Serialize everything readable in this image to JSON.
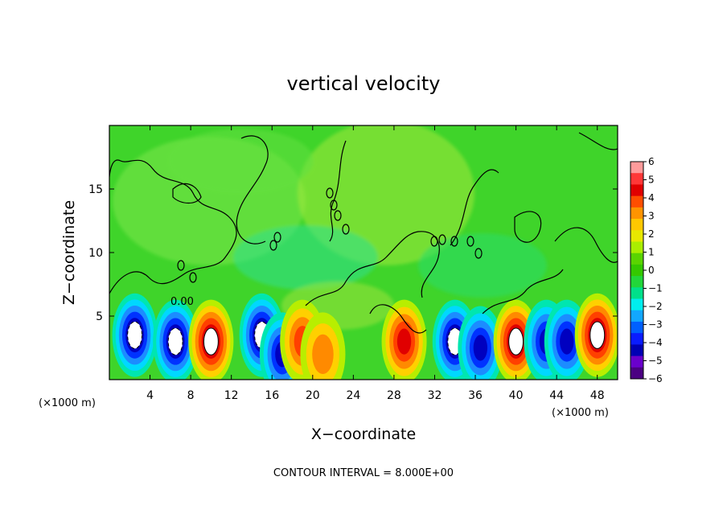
{
  "chart_data": {
    "type": "heatmap",
    "title": "vertical velocity",
    "xlabel": "X−coordinate",
    "ylabel": "Z−coordinate",
    "x_unit_label": "(×1000 m)",
    "x_ticks": [
      4,
      8,
      12,
      16,
      20,
      24,
      28,
      32,
      36,
      40,
      44,
      48
    ],
    "y_ticks": [
      5,
      10,
      15
    ],
    "xlim": [
      0,
      50
    ],
    "ylim": [
      0,
      20
    ],
    "grid": false,
    "contour_interval_label": "CONTOUR INTERVAL = 8.000E+00",
    "contour_label": "0.00",
    "colorbar": {
      "ticks": [
        "6",
        "5",
        "4",
        "3",
        "2",
        "1",
        "0",
        "−1",
        "−2",
        "−3",
        "−4",
        "−5",
        "−6"
      ],
      "colors": [
        "#ff9b9b",
        "#ff3838",
        "#e00000",
        "#ff4e00",
        "#ff9400",
        "#ffc800",
        "#e8e800",
        "#aaee00",
        "#5ad400",
        "#34c800",
        "#22d63a",
        "#00e08a",
        "#00eeee",
        "#12a7ff",
        "#0060ff",
        "#0a1cff",
        "#0000b4",
        "#6a00cc",
        "#4b0082"
      ]
    },
    "cells": [
      {
        "x": 2.5,
        "z": 3.5,
        "w": -6
      },
      {
        "x": 6.5,
        "z": 3.0,
        "w": -6
      },
      {
        "x": 10.0,
        "z": 3.0,
        "w": 6
      },
      {
        "x": 15.0,
        "z": 3.5,
        "w": -6
      },
      {
        "x": 17.0,
        "z": 2.0,
        "w": -5
      },
      {
        "x": 19.0,
        "z": 3.0,
        "w": 4
      },
      {
        "x": 21.0,
        "z": 2.0,
        "w": 3
      },
      {
        "x": 29.0,
        "z": 3.0,
        "w": 5
      },
      {
        "x": 34.0,
        "z": 3.0,
        "w": -6
      },
      {
        "x": 36.5,
        "z": 2.5,
        "w": -5
      },
      {
        "x": 40.0,
        "z": 3.0,
        "w": 6
      },
      {
        "x": 43.0,
        "z": 3.0,
        "w": -5
      },
      {
        "x": 45.0,
        "z": 3.0,
        "w": -5
      },
      {
        "x": 48.0,
        "z": 3.5,
        "w": 6
      }
    ]
  }
}
